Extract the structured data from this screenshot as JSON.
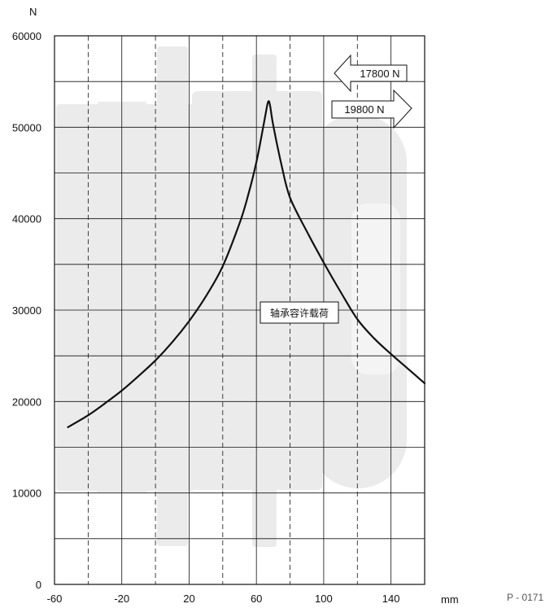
{
  "chart_data": {
    "type": "line",
    "ylabel": "N",
    "xunit": "mm",
    "xlim": [
      -60,
      160
    ],
    "ylim": [
      0,
      60000
    ],
    "xticks": [
      -60,
      -20,
      20,
      60,
      100,
      140
    ],
    "xticks_dashed": [
      -40,
      0,
      40,
      80,
      120
    ],
    "xgrid_solid": [
      -20,
      20,
      60,
      100,
      140
    ],
    "yticks": [
      0,
      10000,
      20000,
      30000,
      40000,
      50000,
      60000
    ],
    "ygrid": [
      5000,
      10000,
      15000,
      20000,
      25000,
      30000,
      35000,
      40000,
      45000,
      50000,
      55000
    ],
    "grid": true,
    "series": [
      {
        "name": "",
        "x": [
          -52,
          -40,
          -30,
          -20,
          -10,
          0,
          10,
          20,
          30,
          40,
          50,
          55,
          60,
          64,
          66,
          67,
          68,
          70,
          75,
          80,
          90,
          100,
          110,
          120,
          130,
          140,
          150,
          160
        ],
        "y": [
          17200,
          18500,
          19800,
          21200,
          22800,
          24500,
          26500,
          28800,
          31500,
          34800,
          39500,
          42500,
          46200,
          50000,
          52000,
          52800,
          52500,
          50200,
          45800,
          42300,
          38600,
          35200,
          32000,
          29000,
          26900,
          25200,
          23600,
          22000
        ]
      }
    ],
    "annotations": {
      "curve_label": "轴承容许载荷",
      "force_left": "17800 N",
      "force_right": "19800 N",
      "code": "P - 0171"
    }
  }
}
